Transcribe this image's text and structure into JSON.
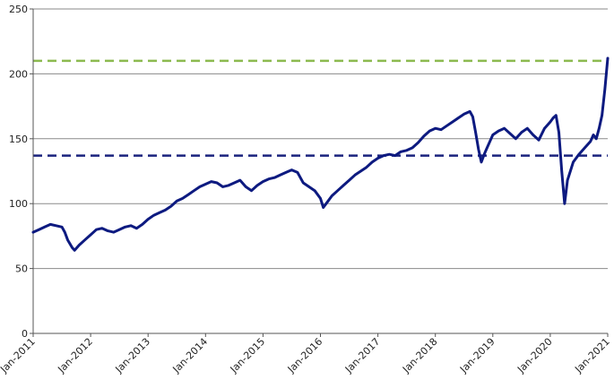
{
  "chart_data": {
    "type": "line",
    "title": "",
    "xlabel": "",
    "ylabel": "",
    "ylim": [
      0,
      250
    ],
    "y_ticks": [
      "0",
      "50",
      "100",
      "150",
      "200",
      "250"
    ],
    "y_tick_values": [
      0,
      50,
      100,
      150,
      200,
      250
    ],
    "x_ticks": [
      "Jan-2011",
      "Jan-2012",
      "Jan-2013",
      "Jan-2014",
      "Jan-2015",
      "Jan-2016",
      "Jan-2017",
      "Jan-2018",
      "Jan-2019",
      "Jan-2020",
      "Jan-2021"
    ],
    "x_tick_values": [
      2011,
      2012,
      2013,
      2014,
      2015,
      2016,
      2017,
      2018,
      2019,
      2020,
      2021
    ],
    "xlim": [
      2011,
      2021
    ],
    "grid": "horizontal",
    "legend": "none",
    "reference_lines": [
      {
        "y": 210,
        "color": "#8cba50",
        "style": "dashed"
      },
      {
        "y": 137,
        "color": "#1a237e",
        "style": "dashed"
      }
    ],
    "series": [
      {
        "color": "#0d1a80",
        "x": [
          2011.0,
          2011.1,
          2011.2,
          2011.3,
          2011.4,
          2011.5,
          2011.55,
          2011.6,
          2011.68,
          2011.72,
          2011.8,
          2011.9,
          2012.0,
          2012.1,
          2012.2,
          2012.3,
          2012.4,
          2012.5,
          2012.6,
          2012.7,
          2012.8,
          2012.9,
          2013.0,
          2013.1,
          2013.2,
          2013.3,
          2013.4,
          2013.5,
          2013.6,
          2013.7,
          2013.8,
          2013.9,
          2014.0,
          2014.1,
          2014.2,
          2014.3,
          2014.4,
          2014.5,
          2014.6,
          2014.7,
          2014.8,
          2014.9,
          2015.0,
          2015.1,
          2015.2,
          2015.3,
          2015.4,
          2015.5,
          2015.6,
          2015.65,
          2015.7,
          2015.8,
          2015.9,
          2016.0,
          2016.05,
          2016.1,
          2016.2,
          2016.3,
          2016.4,
          2016.5,
          2016.6,
          2016.7,
          2016.8,
          2016.9,
          2017.0,
          2017.1,
          2017.2,
          2017.3,
          2017.4,
          2017.5,
          2017.6,
          2017.7,
          2017.8,
          2017.9,
          2018.0,
          2018.1,
          2018.2,
          2018.3,
          2018.4,
          2018.5,
          2018.6,
          2018.65,
          2018.7,
          2018.75,
          2018.8,
          2018.85,
          2018.9,
          2018.95,
          2019.0,
          2019.1,
          2019.2,
          2019.3,
          2019.4,
          2019.5,
          2019.6,
          2019.7,
          2019.8,
          2019.9,
          2020.0,
          2020.05,
          2020.1,
          2020.15,
          2020.2,
          2020.25,
          2020.3,
          2020.4,
          2020.5,
          2020.6,
          2020.7,
          2020.75,
          2020.8,
          2020.85,
          2020.9,
          2020.95,
          2021.0
        ],
        "values": [
          78,
          80,
          82,
          84,
          83,
          82,
          78,
          72,
          66,
          64,
          68,
          72,
          76,
          80,
          81,
          79,
          78,
          80,
          82,
          83,
          81,
          84,
          88,
          91,
          93,
          95,
          98,
          102,
          104,
          107,
          110,
          113,
          115,
          117,
          116,
          113,
          114,
          116,
          118,
          113,
          110,
          114,
          117,
          119,
          120,
          122,
          124,
          126,
          124,
          120,
          116,
          113,
          110,
          104,
          97,
          100,
          106,
          110,
          114,
          118,
          122,
          125,
          128,
          132,
          135,
          137,
          138,
          137,
          140,
          141,
          143,
          147,
          152,
          156,
          158,
          157,
          160,
          163,
          166,
          169,
          171,
          167,
          155,
          142,
          132,
          138,
          143,
          148,
          153,
          156,
          158,
          154,
          150,
          155,
          158,
          153,
          149,
          158,
          163,
          166,
          168,
          155,
          125,
          100,
          118,
          132,
          138,
          143,
          148,
          153,
          150,
          158,
          168,
          188,
          212
        ]
      }
    ]
  }
}
